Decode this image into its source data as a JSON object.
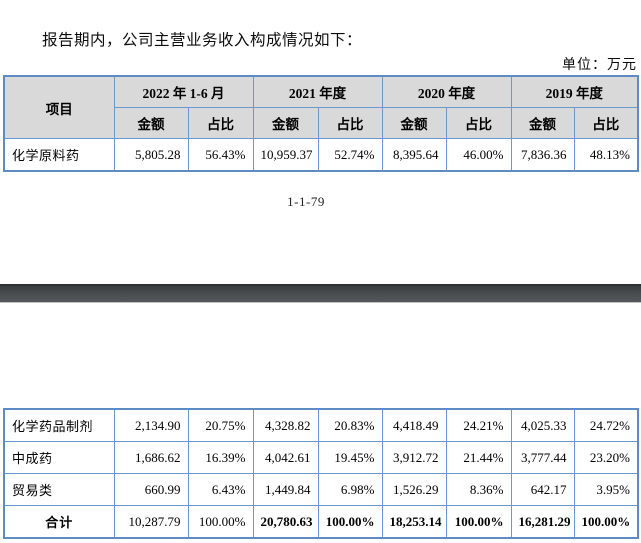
{
  "page": {
    "intro_text": "报告期内，公司主营业务收入构成情况如下：",
    "unit_label": "单位：万元",
    "page_number": "1-1-79"
  },
  "table": {
    "item_header": "项目",
    "periods": [
      "2022 年 1-6 月",
      "2021 年度",
      "2020 年度",
      "2019 年度"
    ],
    "sub_header_amount": "金额",
    "sub_header_ratio": "占比",
    "rows_page1": [
      {
        "label": "化学原料药",
        "values": [
          "5,805.28",
          "56.43%",
          "10,959.37",
          "52.74%",
          "8,395.64",
          "46.00%",
          "7,836.36",
          "48.13%"
        ]
      }
    ],
    "rows_page2": [
      {
        "label": "化学药品制剂",
        "values": [
          "2,134.90",
          "20.75%",
          "4,328.82",
          "20.83%",
          "4,418.49",
          "24.21%",
          "4,025.33",
          "24.72%"
        ]
      },
      {
        "label": "中成药",
        "values": [
          "1,686.62",
          "16.39%",
          "4,042.61",
          "19.45%",
          "3,912.72",
          "21.44%",
          "3,777.44",
          "23.20%"
        ]
      },
      {
        "label": "贸易类",
        "values": [
          "660.99",
          "6.43%",
          "1,449.84",
          "6.98%",
          "1,526.29",
          "8.36%",
          "642.17",
          "3.95%"
        ]
      },
      {
        "label": "合计",
        "is_total": true,
        "values": [
          "10,287.79",
          "100.00%",
          "20,780.63",
          "100.00%",
          "18,253.14",
          "100.00%",
          "16,281.29",
          "100.00%"
        ],
        "bold_mask": [
          false,
          false,
          true,
          true,
          true,
          true,
          true,
          true
        ]
      }
    ]
  },
  "colors": {
    "table_border": "#6c99cd",
    "header_background": "#d9d9d9",
    "page_separator": "#45494c"
  }
}
